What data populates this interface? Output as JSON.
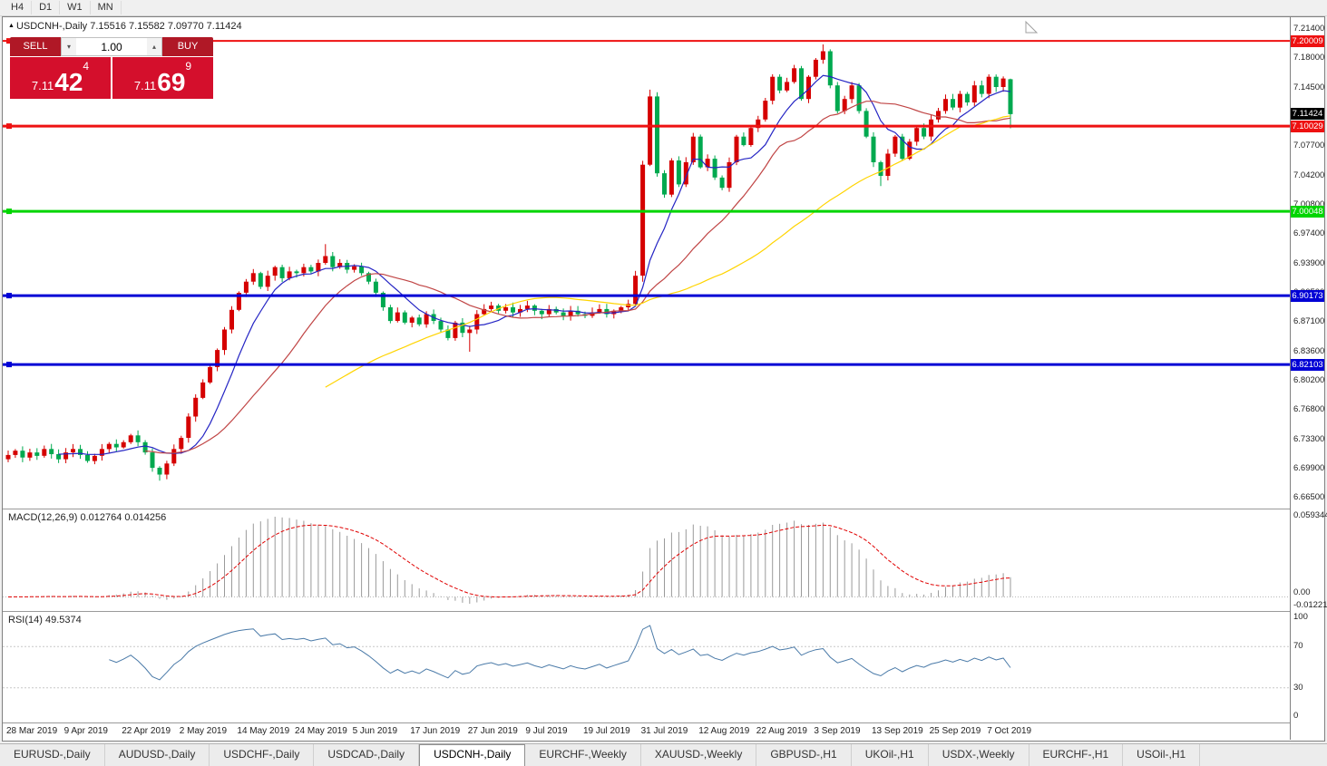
{
  "toolbar": {
    "timeframes": [
      "H4",
      "D1",
      "W1",
      "MN"
    ]
  },
  "chart": {
    "title": "USDCNH-,Daily 7.15516 7.15582 7.09770 7.11424",
    "symbol": "USDCNH-",
    "period": "Daily"
  },
  "trade_panel": {
    "sell_label": "SELL",
    "buy_label": "BUY",
    "volume": "1.00",
    "sell_price": {
      "big": "7.11",
      "pips": "42",
      "frac": "4"
    },
    "buy_price": {
      "big": "7.11",
      "pips": "69",
      "frac": "9"
    }
  },
  "colors": {
    "bull": "#d50000",
    "bear": "#00a94f",
    "ma_fast": "#2525c4",
    "ma_mid": "#c04545",
    "ma_slow": "#ffd400",
    "macd_hist": "#9a9a9a",
    "macd_signal": "#e00000",
    "rsi_line": "#4a7aa8",
    "current_price_bg": "#000000"
  },
  "price_axis": {
    "ticks": [
      "7.21400",
      "7.18000",
      "7.14500",
      "7.11100",
      "7.07700",
      "7.04200",
      "7.00800",
      "6.97400",
      "6.93900",
      "6.90500",
      "6.87100",
      "6.83600",
      "6.80200",
      "6.76800",
      "6.73300",
      "6.69900",
      "6.66500"
    ],
    "current": {
      "label": "7.11424",
      "value": 7.11424
    }
  },
  "levels": [
    {
      "value": 7.20009,
      "label": "7.20009",
      "color": "#ee1111",
      "stroke": 2
    },
    {
      "value": 7.10029,
      "label": "7.10029",
      "color": "#ee1111",
      "stroke": 3
    },
    {
      "value": 7.00048,
      "label": "7.00048",
      "color": "#00d500",
      "stroke": 3
    },
    {
      "value": 6.90173,
      "label": "6.90173",
      "color": "#0000d5",
      "stroke": 3
    },
    {
      "value": 6.82103,
      "label": "6.82103",
      "color": "#0000d5",
      "stroke": 3
    }
  ],
  "macd": {
    "label": "MACD(12,26,9) 0.012764 0.014256",
    "axis_max": "0.0593440",
    "axis_zero": "0.00",
    "axis_min": "-0.0122190"
  },
  "rsi": {
    "label": "RSI(14) 49.5374",
    "axis": [
      "100",
      "70",
      "30",
      "0"
    ]
  },
  "chart_data": {
    "type": "candlestick",
    "title": "USDCNH-,Daily",
    "ylim": [
      6.665,
      7.214
    ],
    "label_every": 8,
    "x_labels": [
      "28 Mar 2019",
      "9 Apr 2019",
      "22 Apr 2019",
      "2 May 2019",
      "14 May 2019",
      "24 May 2019",
      "5 Jun 2019",
      "17 Jun 2019",
      "27 Jun 2019",
      "9 Jul 2019",
      "19 Jul 2019",
      "31 Jul 2019",
      "12 Aug 2019",
      "22 Aug 2019",
      "3 Sep 2019",
      "13 Sep 2019",
      "25 Sep 2019",
      "7 Oct 2019"
    ],
    "first_open": 6.71,
    "closes": [
      6.715,
      6.72,
      6.712,
      6.718,
      6.714,
      6.722,
      6.716,
      6.71,
      6.718,
      6.722,
      6.715,
      6.708,
      6.714,
      6.722,
      6.728,
      6.724,
      6.73,
      6.738,
      6.73,
      6.718,
      6.7,
      6.692,
      6.705,
      6.722,
      6.735,
      6.76,
      6.782,
      6.8,
      6.818,
      6.838,
      6.862,
      6.885,
      6.905,
      6.918,
      6.928,
      6.912,
      6.925,
      6.935,
      6.922,
      6.93,
      6.928,
      6.935,
      6.93,
      6.94,
      6.948,
      6.935,
      6.94,
      6.932,
      6.936,
      6.928,
      6.918,
      6.905,
      6.888,
      6.872,
      6.882,
      6.87,
      6.876,
      6.868,
      6.88,
      6.872,
      6.862,
      6.852,
      6.87,
      6.858,
      6.862,
      6.88,
      6.886,
      6.89,
      6.884,
      6.888,
      6.882,
      6.886,
      6.89,
      6.884,
      6.88,
      6.886,
      6.882,
      6.878,
      6.884,
      6.88,
      6.878,
      6.882,
      6.886,
      6.88,
      6.884,
      6.888,
      6.892,
      6.925,
      7.055,
      7.135,
      7.045,
      7.02,
      7.06,
      7.032,
      7.058,
      7.088,
      7.052,
      7.062,
      7.04,
      7.028,
      7.058,
      7.088,
      7.078,
      7.098,
      7.108,
      7.13,
      7.158,
      7.142,
      7.152,
      7.168,
      7.132,
      7.158,
      7.178,
      7.188,
      7.148,
      7.118,
      7.132,
      7.148,
      7.118,
      7.088,
      7.058,
      7.042,
      7.068,
      7.088,
      7.062,
      7.082,
      7.098,
      7.088,
      7.108,
      7.118,
      7.132,
      7.122,
      7.138,
      7.128,
      7.148,
      7.138,
      7.158,
      7.146,
      7.156,
      7.11424
    ],
    "wick_overrides": {
      "21": {
        "low": 6.685
      },
      "44": {
        "high": 6.962
      },
      "64": {
        "low": 6.836
      },
      "88": {
        "low": 6.918
      },
      "89": {
        "high": 7.143
      },
      "113": {
        "high": 7.196
      },
      "121": {
        "low": 7.03
      }
    },
    "last_candle": {
      "open": 7.15516,
      "high": 7.15582,
      "low": 7.0977,
      "close": 7.11424
    },
    "ma": [
      {
        "period": 8,
        "color": "#2525c4"
      },
      {
        "period": 20,
        "color": "#c04545"
      },
      {
        "period": 45,
        "color": "#ffd400"
      }
    ]
  },
  "tabs": [
    {
      "label": "EURUSD-,Daily",
      "active": false
    },
    {
      "label": "AUDUSD-,Daily",
      "active": false
    },
    {
      "label": "USDCHF-,Daily",
      "active": false
    },
    {
      "label": "USDCAD-,Daily",
      "active": false
    },
    {
      "label": "USDCNH-,Daily",
      "active": true
    },
    {
      "label": "EURCHF-,Weekly",
      "active": false
    },
    {
      "label": "XAUUSD-,Weekly",
      "active": false
    },
    {
      "label": "GBPUSD-,H1",
      "active": false
    },
    {
      "label": "UKOil-,H1",
      "active": false
    },
    {
      "label": "USDX-,Weekly",
      "active": false
    },
    {
      "label": "EURCHF-,H1",
      "active": false
    },
    {
      "label": "USOil-,H1",
      "active": false
    }
  ]
}
